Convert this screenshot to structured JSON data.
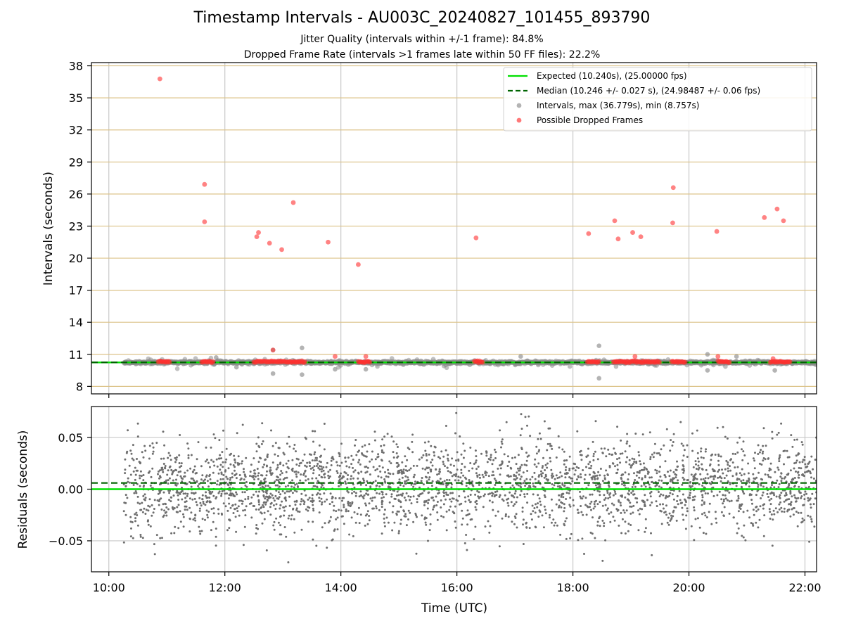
{
  "chart_data": [
    {
      "type": "scatter",
      "title": "Timestamp Intervals - AU003C_20240827_101455_893790",
      "subtitle": [
        "Jitter Quality (intervals within +/-1 frame): 84.8%",
        "Dropped Frame Rate (intervals >1 frames late within 50 FF files): 22.2%"
      ],
      "xlabel": "",
      "ylabel": "Intervals (seconds)",
      "xlim_hours": [
        9.7,
        22.2
      ],
      "ylim": [
        7.3,
        38.3
      ],
      "yticks": [
        8,
        11,
        14,
        17,
        20,
        23,
        26,
        29,
        32,
        35,
        38
      ],
      "hgrid_color": "#dcc389",
      "vgrid_color": "#c8c8c8",
      "legend_position": "top-right",
      "legend": [
        "Expected (10.240s), (25.00000 fps)",
        "Median (10.246 +/- 0.027 s), (24.98487 +/- 0.06 fps)",
        "Intervals, max (36.779s), min (8.757s)",
        "Possible Dropped Frames"
      ],
      "expected_interval": 10.24,
      "median_interval": 10.246,
      "data_start_hours": 10.26,
      "data_end_hours": 22.2,
      "interval_baseline_description": "dense grey band of intervals near 10.24 s from 10:15 to 22:12",
      "gray_outliers": [
        {
          "x": 12.83,
          "y": 11.4
        },
        {
          "x": 13.33,
          "y": 11.6
        },
        {
          "x": 18.45,
          "y": 11.8
        },
        {
          "x": 18.45,
          "y": 8.76
        },
        {
          "x": 12.83,
          "y": 9.2
        },
        {
          "x": 13.33,
          "y": 9.1
        },
        {
          "x": 13.9,
          "y": 9.6
        },
        {
          "x": 14.43,
          "y": 9.6
        },
        {
          "x": 20.32,
          "y": 9.5
        },
        {
          "x": 21.48,
          "y": 9.5
        },
        {
          "x": 20.32,
          "y": 11.0
        },
        {
          "x": 20.82,
          "y": 10.8
        },
        {
          "x": 17.1,
          "y": 10.8
        },
        {
          "x": 11.85,
          "y": 10.7
        },
        {
          "x": 12.2,
          "y": 9.8
        }
      ],
      "dropped_frames": [
        {
          "x": 10.88,
          "y": 36.78
        },
        {
          "x": 11.65,
          "y": 26.9
        },
        {
          "x": 11.65,
          "y": 23.4
        },
        {
          "x": 12.55,
          "y": 22.0
        },
        {
          "x": 12.58,
          "y": 22.4
        },
        {
          "x": 12.77,
          "y": 21.4
        },
        {
          "x": 12.98,
          "y": 20.8
        },
        {
          "x": 13.18,
          "y": 25.2
        },
        {
          "x": 13.78,
          "y": 21.5
        },
        {
          "x": 14.3,
          "y": 19.4
        },
        {
          "x": 16.33,
          "y": 21.9
        },
        {
          "x": 18.27,
          "y": 22.3
        },
        {
          "x": 18.72,
          "y": 23.5
        },
        {
          "x": 18.78,
          "y": 21.8
        },
        {
          "x": 19.03,
          "y": 22.4
        },
        {
          "x": 19.17,
          "y": 22.0
        },
        {
          "x": 19.72,
          "y": 23.3
        },
        {
          "x": 19.73,
          "y": 26.6
        },
        {
          "x": 20.48,
          "y": 22.5
        },
        {
          "x": 21.3,
          "y": 23.8
        },
        {
          "x": 21.52,
          "y": 24.6
        },
        {
          "x": 21.63,
          "y": 23.5
        },
        {
          "x": 12.83,
          "y": 11.4
        },
        {
          "x": 13.9,
          "y": 10.8
        },
        {
          "x": 14.43,
          "y": 10.8
        },
        {
          "x": 19.07,
          "y": 10.8
        },
        {
          "x": 20.5,
          "y": 10.8
        },
        {
          "x": 21.45,
          "y": 10.6
        }
      ],
      "dropped_frame_clusters": [
        {
          "start": 10.85,
          "end": 11.05,
          "y": 10.3
        },
        {
          "start": 11.6,
          "end": 11.8,
          "y": 10.3
        },
        {
          "start": 12.5,
          "end": 13.4,
          "y": 10.3
        },
        {
          "start": 14.3,
          "end": 14.5,
          "y": 10.3
        },
        {
          "start": 16.3,
          "end": 16.45,
          "y": 10.3
        },
        {
          "start": 18.25,
          "end": 18.45,
          "y": 10.3
        },
        {
          "start": 18.7,
          "end": 19.5,
          "y": 10.3
        },
        {
          "start": 19.7,
          "end": 19.95,
          "y": 10.3
        },
        {
          "start": 20.5,
          "end": 20.7,
          "y": 10.3
        },
        {
          "start": 21.4,
          "end": 21.75,
          "y": 10.3
        }
      ]
    },
    {
      "type": "scatter",
      "xlabel": "Time (UTC)",
      "ylabel": "Residuals (seconds)",
      "xlim_hours": [
        9.7,
        22.2
      ],
      "ylim": [
        -0.08,
        0.08
      ],
      "yticks": [
        -0.05,
        0.0,
        0.05
      ],
      "ytick_labels": [
        "−0.05",
        "0.00",
        "0.05"
      ],
      "xticks_hours": [
        10,
        12,
        14,
        16,
        18,
        20,
        22
      ],
      "xtick_labels": [
        "10:00",
        "12:00",
        "14:00",
        "16:00",
        "18:00",
        "20:00",
        "22:00"
      ],
      "expected_residual": 0.0,
      "median_residual": 0.006,
      "residual_spread_std": 0.022,
      "data_start_hours": 10.26,
      "data_end_hours": 22.2
    }
  ],
  "colors": {
    "expected_line": "#00e000",
    "median_line": "#006400",
    "interval_points": "#8c8c8c",
    "dropped_points": "#ff3030",
    "residual_points": "#6e6e6e"
  }
}
